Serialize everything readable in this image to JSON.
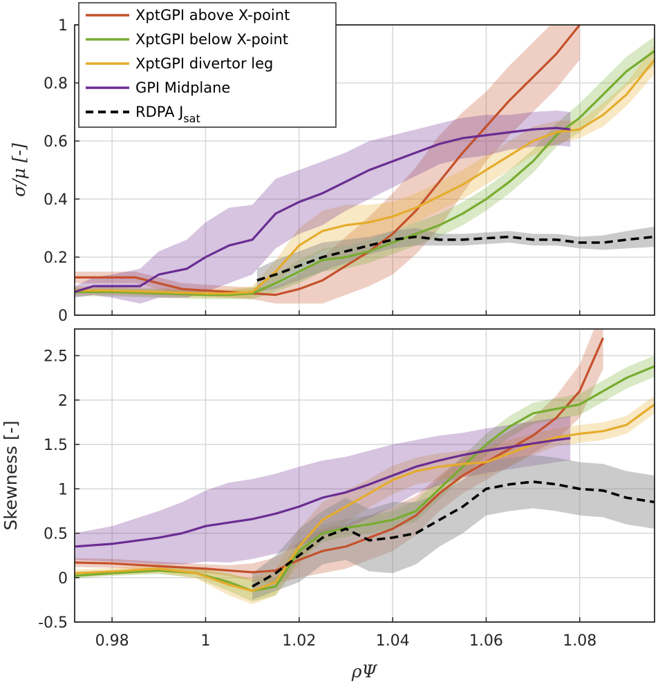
{
  "colors": {
    "xpt_above": "#c4512c",
    "xpt_below": "#77ac30",
    "xpt_leg": "#e5ac2c",
    "gpi_mid": "#6a2c91",
    "rdpa": "#000000",
    "rdpa_band": "#8c8c8c",
    "grid": "#d9d9d9"
  },
  "legend": {
    "items": [
      {
        "label": "XptGPI above X-point",
        "color_key": "xpt_above",
        "style": "solid"
      },
      {
        "label": "XptGPI below X-point",
        "color_key": "xpt_below",
        "style": "solid"
      },
      {
        "label": "XptGPI divertor leg",
        "color_key": "xpt_leg",
        "style": "solid"
      },
      {
        "label": "GPI Midplane",
        "color_key": "gpi_mid",
        "style": "solid"
      },
      {
        "label": "RDPA J",
        "sub": "sat",
        "color_key": "rdpa",
        "style": "dashed"
      }
    ]
  },
  "chart_data": [
    {
      "type": "line",
      "panel": "top",
      "ylabel": "σ/μ [-]",
      "xlim": [
        0.972,
        1.096
      ],
      "ylim": [
        0,
        1
      ],
      "grid": true,
      "legend_position": "top-left",
      "xticks": [
        0.98,
        1,
        1.02,
        1.04,
        1.06,
        1.08
      ],
      "yticks": [
        0,
        0.2,
        0.4,
        0.6,
        0.8,
        1
      ],
      "ytick_labels": [
        "0",
        "0.2",
        "0.4",
        "0.6",
        "0.8",
        "1"
      ],
      "series": [
        {
          "name": "XptGPI above X-point",
          "color_key": "xpt_above",
          "style": "solid",
          "x": [
            0.972,
            0.98,
            0.985,
            0.99,
            0.995,
            1.0,
            1.005,
            1.01,
            1.015,
            1.02,
            1.025,
            1.03,
            1.035,
            1.04,
            1.045,
            1.05,
            1.055,
            1.06,
            1.065,
            1.07,
            1.075,
            1.08
          ],
          "y": [
            0.13,
            0.13,
            0.13,
            0.11,
            0.09,
            0.085,
            0.08,
            0.075,
            0.07,
            0.09,
            0.12,
            0.17,
            0.22,
            0.28,
            0.36,
            0.46,
            0.56,
            0.65,
            0.74,
            0.82,
            0.9,
            1.0
          ],
          "band": [
            0.02,
            0.02,
            0.02,
            0.02,
            0.02,
            0.02,
            0.02,
            0.02,
            0.03,
            0.05,
            0.08,
            0.1,
            0.12,
            0.14,
            0.15,
            0.16,
            0.14,
            0.12,
            0.12,
            0.12,
            0.12,
            0.12
          ]
        },
        {
          "name": "XptGPI below X-point",
          "color_key": "xpt_below",
          "style": "solid",
          "x": [
            0.972,
            0.98,
            0.99,
            1.0,
            1.005,
            1.01,
            1.015,
            1.02,
            1.025,
            1.03,
            1.035,
            1.04,
            1.045,
            1.05,
            1.055,
            1.06,
            1.065,
            1.07,
            1.075,
            1.08,
            1.085,
            1.09,
            1.096
          ],
          "y": [
            0.08,
            0.08,
            0.075,
            0.07,
            0.07,
            0.075,
            0.11,
            0.15,
            0.19,
            0.2,
            0.22,
            0.25,
            0.28,
            0.31,
            0.35,
            0.4,
            0.46,
            0.53,
            0.62,
            0.68,
            0.76,
            0.84,
            0.91
          ],
          "band": [
            0.015,
            0.015,
            0.015,
            0.015,
            0.015,
            0.02,
            0.03,
            0.04,
            0.04,
            0.04,
            0.04,
            0.04,
            0.04,
            0.04,
            0.04,
            0.04,
            0.04,
            0.04,
            0.04,
            0.05,
            0.05,
            0.05,
            0.05
          ]
        },
        {
          "name": "XptGPI divertor leg",
          "color_key": "xpt_leg",
          "style": "solid",
          "x": [
            0.972,
            0.98,
            0.99,
            1.0,
            1.005,
            1.01,
            1.015,
            1.02,
            1.025,
            1.03,
            1.035,
            1.04,
            1.045,
            1.05,
            1.055,
            1.06,
            1.065,
            1.07,
            1.075,
            1.08,
            1.085,
            1.09,
            1.096
          ],
          "y": [
            0.085,
            0.085,
            0.08,
            0.075,
            0.075,
            0.08,
            0.15,
            0.24,
            0.29,
            0.31,
            0.32,
            0.34,
            0.37,
            0.41,
            0.45,
            0.5,
            0.55,
            0.6,
            0.63,
            0.64,
            0.69,
            0.76,
            0.88
          ],
          "band": [
            0.015,
            0.015,
            0.015,
            0.015,
            0.015,
            0.02,
            0.04,
            0.06,
            0.07,
            0.07,
            0.06,
            0.05,
            0.05,
            0.05,
            0.05,
            0.05,
            0.05,
            0.05,
            0.04,
            0.03,
            0.04,
            0.04,
            0.05
          ]
        },
        {
          "name": "GPI Midplane",
          "color_key": "gpi_mid",
          "style": "solid",
          "x": [
            0.972,
            0.976,
            0.98,
            0.986,
            0.99,
            0.996,
            1.0,
            1.005,
            1.01,
            1.015,
            1.02,
            1.025,
            1.03,
            1.035,
            1.04,
            1.045,
            1.05,
            1.055,
            1.06,
            1.065,
            1.07,
            1.075,
            1.078
          ],
          "y": [
            0.08,
            0.1,
            0.1,
            0.1,
            0.14,
            0.16,
            0.2,
            0.24,
            0.26,
            0.35,
            0.39,
            0.42,
            0.46,
            0.5,
            0.53,
            0.56,
            0.59,
            0.61,
            0.62,
            0.63,
            0.64,
            0.645,
            0.64
          ],
          "band": [
            0.02,
            0.03,
            0.04,
            0.06,
            0.08,
            0.1,
            0.12,
            0.13,
            0.12,
            0.12,
            0.11,
            0.11,
            0.1,
            0.1,
            0.09,
            0.08,
            0.07,
            0.07,
            0.07,
            0.06,
            0.06,
            0.06,
            0.06
          ]
        },
        {
          "name": "RDPA Jsat",
          "color_key": "rdpa",
          "style": "dashed",
          "band_color_key": "rdpa_band",
          "x": [
            1.011,
            1.015,
            1.02,
            1.025,
            1.03,
            1.035,
            1.04,
            1.045,
            1.05,
            1.055,
            1.06,
            1.065,
            1.07,
            1.075,
            1.08,
            1.085,
            1.09,
            1.096
          ],
          "y": [
            0.12,
            0.14,
            0.17,
            0.2,
            0.22,
            0.24,
            0.26,
            0.27,
            0.26,
            0.26,
            0.265,
            0.27,
            0.26,
            0.26,
            0.25,
            0.25,
            0.26,
            0.27
          ],
          "band": [
            0.04,
            0.05,
            0.05,
            0.05,
            0.04,
            0.03,
            0.03,
            0.03,
            0.02,
            0.02,
            0.02,
            0.02,
            0.02,
            0.02,
            0.02,
            0.025,
            0.03,
            0.035
          ]
        }
      ]
    },
    {
      "type": "line",
      "panel": "bottom",
      "xlabel": "ρΨ",
      "ylabel": "Skewness [-]",
      "xlim": [
        0.972,
        1.096
      ],
      "ylim": [
        -0.5,
        2.8
      ],
      "grid": true,
      "xticks": [
        0.98,
        1,
        1.02,
        1.04,
        1.06,
        1.08
      ],
      "xtick_labels": [
        "0.98",
        "1",
        "1.02",
        "1.04",
        "1.06",
        "1.08"
      ],
      "yticks": [
        -0.5,
        0,
        0.5,
        1,
        1.5,
        2,
        2.5
      ],
      "ytick_labels": [
        "-0.5",
        "0",
        "0.5",
        "1",
        "1.5",
        "2",
        "2.5"
      ],
      "series": [
        {
          "name": "XptGPI above X-point",
          "color_key": "xpt_above",
          "style": "solid",
          "x": [
            0.972,
            0.98,
            0.99,
            1.0,
            1.005,
            1.01,
            1.015,
            1.02,
            1.025,
            1.03,
            1.035,
            1.04,
            1.045,
            1.05,
            1.055,
            1.06,
            1.065,
            1.07,
            1.075,
            1.08,
            1.085
          ],
          "y": [
            0.17,
            0.16,
            0.13,
            0.1,
            0.08,
            0.06,
            0.08,
            0.2,
            0.3,
            0.35,
            0.45,
            0.55,
            0.7,
            0.95,
            1.15,
            1.3,
            1.45,
            1.6,
            1.8,
            2.1,
            2.7
          ],
          "band": [
            0.05,
            0.05,
            0.05,
            0.05,
            0.06,
            0.1,
            0.15,
            0.2,
            0.25,
            0.25,
            0.25,
            0.25,
            0.22,
            0.2,
            0.2,
            0.2,
            0.2,
            0.2,
            0.25,
            0.3,
            0.35
          ]
        },
        {
          "name": "XptGPI below X-point",
          "color_key": "xpt_below",
          "style": "solid",
          "x": [
            0.972,
            0.98,
            0.99,
            0.998,
            1.005,
            1.01,
            1.015,
            1.02,
            1.025,
            1.03,
            1.035,
            1.04,
            1.045,
            1.05,
            1.055,
            1.06,
            1.065,
            1.07,
            1.075,
            1.08,
            1.085,
            1.09,
            1.096
          ],
          "y": [
            0.02,
            0.05,
            0.08,
            0.05,
            -0.05,
            -0.15,
            -0.1,
            0.3,
            0.5,
            0.56,
            0.6,
            0.65,
            0.75,
            1.0,
            1.25,
            1.5,
            1.7,
            1.85,
            1.9,
            1.95,
            2.1,
            2.25,
            2.38
          ],
          "band": [
            0.03,
            0.03,
            0.04,
            0.05,
            0.1,
            0.12,
            0.1,
            0.1,
            0.1,
            0.1,
            0.1,
            0.1,
            0.12,
            0.12,
            0.12,
            0.12,
            0.12,
            0.12,
            0.12,
            0.12,
            0.12,
            0.12,
            0.12
          ]
        },
        {
          "name": "XptGPI divertor leg",
          "color_key": "xpt_leg",
          "style": "solid",
          "x": [
            0.972,
            0.98,
            0.99,
            0.998,
            1.005,
            1.01,
            1.015,
            1.02,
            1.025,
            1.03,
            1.035,
            1.04,
            1.045,
            1.05,
            1.055,
            1.06,
            1.065,
            1.07,
            1.075,
            1.08,
            1.085,
            1.09,
            1.096
          ],
          "y": [
            0.05,
            0.07,
            0.1,
            0.05,
            -0.08,
            -0.15,
            -0.05,
            0.35,
            0.65,
            0.8,
            0.95,
            1.1,
            1.2,
            1.25,
            1.28,
            1.3,
            1.4,
            1.5,
            1.58,
            1.62,
            1.65,
            1.72,
            1.95
          ],
          "band": [
            0.04,
            0.04,
            0.05,
            0.06,
            0.12,
            0.15,
            0.15,
            0.2,
            0.2,
            0.18,
            0.16,
            0.16,
            0.15,
            0.15,
            0.15,
            0.15,
            0.15,
            0.12,
            0.1,
            0.1,
            0.1,
            0.1,
            0.1
          ]
        },
        {
          "name": "GPI Midplane",
          "color_key": "gpi_mid",
          "style": "solid",
          "x": [
            0.972,
            0.98,
            0.99,
            0.995,
            1.0,
            1.005,
            1.01,
            1.015,
            1.02,
            1.025,
            1.03,
            1.035,
            1.04,
            1.045,
            1.05,
            1.055,
            1.06,
            1.065,
            1.07,
            1.075,
            1.078
          ],
          "y": [
            0.35,
            0.38,
            0.45,
            0.5,
            0.58,
            0.62,
            0.66,
            0.72,
            0.8,
            0.9,
            0.96,
            1.05,
            1.15,
            1.25,
            1.32,
            1.38,
            1.43,
            1.47,
            1.51,
            1.55,
            1.57
          ],
          "band": [
            0.15,
            0.2,
            0.3,
            0.35,
            0.4,
            0.45,
            0.45,
            0.45,
            0.45,
            0.42,
            0.4,
            0.38,
            0.35,
            0.3,
            0.28,
            0.25,
            0.25,
            0.25,
            0.25,
            0.25,
            0.25
          ]
        },
        {
          "name": "RDPA Jsat",
          "color_key": "rdpa",
          "style": "dashed",
          "band_color_key": "rdpa_band",
          "x": [
            1.01,
            1.015,
            1.02,
            1.025,
            1.03,
            1.035,
            1.04,
            1.045,
            1.05,
            1.055,
            1.06,
            1.065,
            1.07,
            1.075,
            1.08,
            1.085,
            1.09,
            1.096
          ],
          "y": [
            -0.1,
            0.05,
            0.25,
            0.45,
            0.55,
            0.42,
            0.45,
            0.5,
            0.65,
            0.8,
            1.0,
            1.05,
            1.08,
            1.05,
            1.0,
            0.98,
            0.9,
            0.85
          ],
          "band": [
            0.15,
            0.2,
            0.3,
            0.3,
            0.35,
            0.35,
            0.4,
            0.35,
            0.3,
            0.3,
            0.3,
            0.3,
            0.3,
            0.3,
            0.3,
            0.3,
            0.3,
            0.3
          ]
        }
      ]
    }
  ]
}
